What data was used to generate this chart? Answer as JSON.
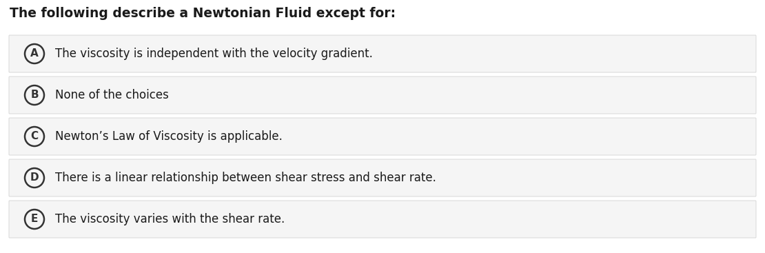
{
  "title": "The following describe a Newtonian Fluid except for:",
  "title_fontsize": 13.5,
  "title_fontweight": "bold",
  "title_color": "#1a1a1a",
  "background_color": "#ffffff",
  "option_bg_color": "#f5f5f5",
  "option_border_color": "#d8d8d8",
  "option_text_color": "#1a1a1a",
  "circle_edge_color": "#333333",
  "options": [
    {
      "label": "A",
      "text": "The viscosity is independent with the velocity gradient."
    },
    {
      "label": "B",
      "text": "None of the choices"
    },
    {
      "label": "C",
      "text": "Newton’s Law of Viscosity is applicable."
    },
    {
      "label": "D",
      "text": "There is a linear relationship between shear stress and shear rate."
    },
    {
      "label": "E",
      "text": "The viscosity varies with the shear rate."
    }
  ],
  "option_fontsize": 12,
  "label_fontsize": 11,
  "fig_width": 11.1,
  "fig_height": 3.67,
  "dpi": 100
}
